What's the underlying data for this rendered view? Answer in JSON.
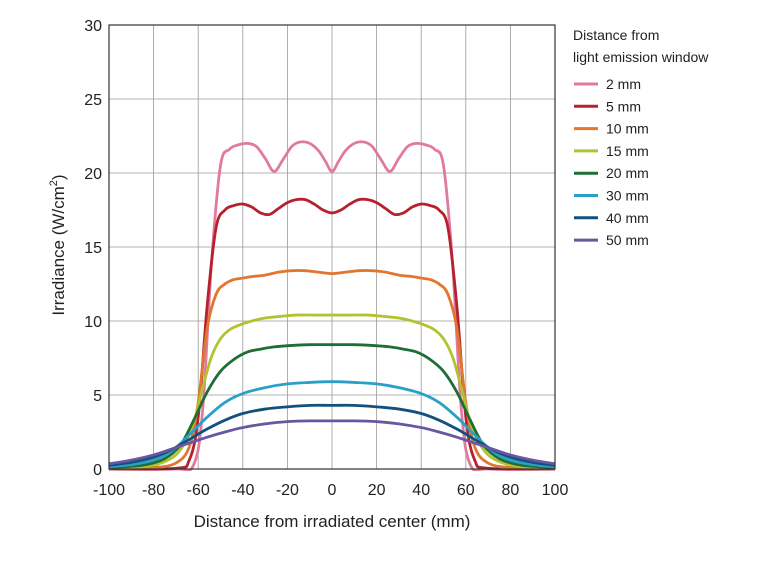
{
  "chart_data": {
    "type": "line",
    "title": "",
    "xlabel": "Distance from irradiated center (mm)",
    "ylabel_main": "Irradiance (W/cm",
    "ylabel_sup": "2",
    "ylabel_close": ")",
    "xlim": [
      -100,
      100
    ],
    "ylim": [
      0,
      30
    ],
    "xticks": [
      -100,
      -80,
      -60,
      -40,
      -20,
      0,
      20,
      40,
      60,
      80,
      100
    ],
    "yticks": [
      0,
      5,
      10,
      15,
      20,
      25,
      30
    ],
    "grid": true,
    "legend": {
      "title_line1": "Distance from",
      "title_line2": "light emission window",
      "placement": "right"
    },
    "series": [
      {
        "name": "2 mm",
        "color": "#e07aa0",
        "points": [
          [
            -100,
            0
          ],
          [
            -70,
            0
          ],
          [
            -62,
            0.3
          ],
          [
            -58,
            4
          ],
          [
            -54,
            14
          ],
          [
            -50,
            20.5
          ],
          [
            -46,
            21.6
          ],
          [
            -42,
            21.9
          ],
          [
            -38,
            22.0
          ],
          [
            -34,
            21.8
          ],
          [
            -30,
            21.0
          ],
          [
            -26,
            20.1
          ],
          [
            -22,
            20.9
          ],
          [
            -18,
            21.8
          ],
          [
            -14,
            22.1
          ],
          [
            -10,
            22.0
          ],
          [
            -6,
            21.5
          ],
          [
            -3,
            20.8
          ],
          [
            0,
            20.1
          ],
          [
            3,
            20.8
          ],
          [
            6,
            21.5
          ],
          [
            10,
            22.0
          ],
          [
            14,
            22.1
          ],
          [
            18,
            21.8
          ],
          [
            22,
            20.9
          ],
          [
            26,
            20.1
          ],
          [
            30,
            21.0
          ],
          [
            34,
            21.8
          ],
          [
            38,
            22.0
          ],
          [
            42,
            21.9
          ],
          [
            46,
            21.6
          ],
          [
            50,
            20.5
          ],
          [
            54,
            14
          ],
          [
            58,
            4
          ],
          [
            62,
            0.3
          ],
          [
            70,
            0
          ],
          [
            100,
            0
          ]
        ]
      },
      {
        "name": "5 mm",
        "color": "#b5222e",
        "points": [
          [
            -100,
            0
          ],
          [
            -70,
            0.05
          ],
          [
            -64,
            0.6
          ],
          [
            -60,
            3.5
          ],
          [
            -56,
            11
          ],
          [
            -52,
            16.3
          ],
          [
            -48,
            17.5
          ],
          [
            -44,
            17.8
          ],
          [
            -40,
            17.9
          ],
          [
            -36,
            17.7
          ],
          [
            -32,
            17.3
          ],
          [
            -28,
            17.2
          ],
          [
            -24,
            17.6
          ],
          [
            -20,
            18.0
          ],
          [
            -16,
            18.2
          ],
          [
            -12,
            18.2
          ],
          [
            -8,
            17.9
          ],
          [
            -4,
            17.5
          ],
          [
            0,
            17.3
          ],
          [
            4,
            17.5
          ],
          [
            8,
            17.9
          ],
          [
            12,
            18.2
          ],
          [
            16,
            18.2
          ],
          [
            20,
            18.0
          ],
          [
            24,
            17.6
          ],
          [
            28,
            17.2
          ],
          [
            32,
            17.3
          ],
          [
            36,
            17.7
          ],
          [
            40,
            17.9
          ],
          [
            44,
            17.8
          ],
          [
            48,
            17.5
          ],
          [
            52,
            16.3
          ],
          [
            56,
            11
          ],
          [
            60,
            3.5
          ],
          [
            64,
            0.6
          ],
          [
            70,
            0.05
          ],
          [
            100,
            0
          ]
        ]
      },
      {
        "name": "10 mm",
        "color": "#e07630",
        "points": [
          [
            -100,
            0.05
          ],
          [
            -80,
            0.1
          ],
          [
            -70,
            0.4
          ],
          [
            -64,
            1.5
          ],
          [
            -60,
            4.5
          ],
          [
            -56,
            9.5
          ],
          [
            -52,
            11.8
          ],
          [
            -48,
            12.5
          ],
          [
            -44,
            12.8
          ],
          [
            -40,
            12.9
          ],
          [
            -36,
            13.0
          ],
          [
            -30,
            13.1
          ],
          [
            -24,
            13.3
          ],
          [
            -18,
            13.4
          ],
          [
            -12,
            13.4
          ],
          [
            -6,
            13.3
          ],
          [
            0,
            13.2
          ],
          [
            6,
            13.3
          ],
          [
            12,
            13.4
          ],
          [
            18,
            13.4
          ],
          [
            24,
            13.3
          ],
          [
            30,
            13.1
          ],
          [
            36,
            13.0
          ],
          [
            40,
            12.9
          ],
          [
            44,
            12.8
          ],
          [
            48,
            12.5
          ],
          [
            52,
            11.8
          ],
          [
            56,
            9.5
          ],
          [
            60,
            4.5
          ],
          [
            64,
            1.5
          ],
          [
            70,
            0.4
          ],
          [
            80,
            0.1
          ],
          [
            100,
            0.05
          ]
        ]
      },
      {
        "name": "15 mm",
        "color": "#b3c230",
        "points": [
          [
            -100,
            0.05
          ],
          [
            -85,
            0.15
          ],
          [
            -75,
            0.5
          ],
          [
            -68,
            1.3
          ],
          [
            -62,
            3.2
          ],
          [
            -58,
            5.5
          ],
          [
            -54,
            7.6
          ],
          [
            -50,
            8.8
          ],
          [
            -46,
            9.4
          ],
          [
            -42,
            9.7
          ],
          [
            -36,
            10.0
          ],
          [
            -30,
            10.2
          ],
          [
            -24,
            10.3
          ],
          [
            -16,
            10.4
          ],
          [
            -8,
            10.4
          ],
          [
            0,
            10.4
          ],
          [
            8,
            10.4
          ],
          [
            16,
            10.4
          ],
          [
            24,
            10.3
          ],
          [
            30,
            10.2
          ],
          [
            36,
            10.0
          ],
          [
            42,
            9.7
          ],
          [
            46,
            9.4
          ],
          [
            50,
            8.8
          ],
          [
            54,
            7.6
          ],
          [
            58,
            5.5
          ],
          [
            62,
            3.2
          ],
          [
            68,
            1.3
          ],
          [
            75,
            0.5
          ],
          [
            85,
            0.15
          ],
          [
            100,
            0.05
          ]
        ]
      },
      {
        "name": "20 mm",
        "color": "#1e6e35",
        "points": [
          [
            -100,
            0.1
          ],
          [
            -85,
            0.25
          ],
          [
            -75,
            0.7
          ],
          [
            -68,
            1.6
          ],
          [
            -62,
            3.3
          ],
          [
            -56,
            5.2
          ],
          [
            -50,
            6.6
          ],
          [
            -44,
            7.4
          ],
          [
            -38,
            7.9
          ],
          [
            -32,
            8.1
          ],
          [
            -26,
            8.25
          ],
          [
            -18,
            8.35
          ],
          [
            -10,
            8.4
          ],
          [
            0,
            8.4
          ],
          [
            10,
            8.4
          ],
          [
            18,
            8.35
          ],
          [
            26,
            8.25
          ],
          [
            32,
            8.1
          ],
          [
            38,
            7.9
          ],
          [
            44,
            7.4
          ],
          [
            50,
            6.6
          ],
          [
            56,
            5.2
          ],
          [
            62,
            3.3
          ],
          [
            68,
            1.6
          ],
          [
            75,
            0.7
          ],
          [
            85,
            0.25
          ],
          [
            100,
            0.1
          ]
        ]
      },
      {
        "name": "30 mm",
        "color": "#2aa0c8",
        "points": [
          [
            -100,
            0.15
          ],
          [
            -90,
            0.3
          ],
          [
            -80,
            0.6
          ],
          [
            -72,
            1.2
          ],
          [
            -64,
            2.3
          ],
          [
            -56,
            3.5
          ],
          [
            -48,
            4.5
          ],
          [
            -40,
            5.1
          ],
          [
            -30,
            5.5
          ],
          [
            -20,
            5.75
          ],
          [
            -10,
            5.85
          ],
          [
            0,
            5.9
          ],
          [
            10,
            5.85
          ],
          [
            20,
            5.75
          ],
          [
            30,
            5.5
          ],
          [
            40,
            5.1
          ],
          [
            48,
            4.5
          ],
          [
            56,
            3.5
          ],
          [
            64,
            2.3
          ],
          [
            72,
            1.2
          ],
          [
            80,
            0.6
          ],
          [
            90,
            0.3
          ],
          [
            100,
            0.15
          ]
        ]
      },
      {
        "name": "40 mm",
        "color": "#12507e",
        "points": [
          [
            -100,
            0.25
          ],
          [
            -90,
            0.45
          ],
          [
            -80,
            0.8
          ],
          [
            -72,
            1.3
          ],
          [
            -64,
            2.0
          ],
          [
            -56,
            2.7
          ],
          [
            -48,
            3.3
          ],
          [
            -40,
            3.75
          ],
          [
            -30,
            4.05
          ],
          [
            -20,
            4.2
          ],
          [
            -10,
            4.3
          ],
          [
            0,
            4.3
          ],
          [
            10,
            4.3
          ],
          [
            20,
            4.2
          ],
          [
            30,
            4.05
          ],
          [
            40,
            3.75
          ],
          [
            48,
            3.3
          ],
          [
            56,
            2.7
          ],
          [
            64,
            2.0
          ],
          [
            72,
            1.3
          ],
          [
            80,
            0.8
          ],
          [
            90,
            0.45
          ],
          [
            100,
            0.25
          ]
        ]
      },
      {
        "name": "50 mm",
        "color": "#6a56a0",
        "points": [
          [
            -100,
            0.35
          ],
          [
            -90,
            0.6
          ],
          [
            -80,
            0.95
          ],
          [
            -72,
            1.35
          ],
          [
            -64,
            1.75
          ],
          [
            -56,
            2.15
          ],
          [
            -48,
            2.5
          ],
          [
            -40,
            2.8
          ],
          [
            -30,
            3.05
          ],
          [
            -20,
            3.2
          ],
          [
            -10,
            3.25
          ],
          [
            0,
            3.25
          ],
          [
            10,
            3.25
          ],
          [
            20,
            3.2
          ],
          [
            30,
            3.05
          ],
          [
            40,
            2.8
          ],
          [
            48,
            2.5
          ],
          [
            56,
            2.15
          ],
          [
            64,
            1.75
          ],
          [
            72,
            1.35
          ],
          [
            80,
            0.95
          ],
          [
            90,
            0.6
          ],
          [
            100,
            0.35
          ]
        ]
      }
    ]
  }
}
